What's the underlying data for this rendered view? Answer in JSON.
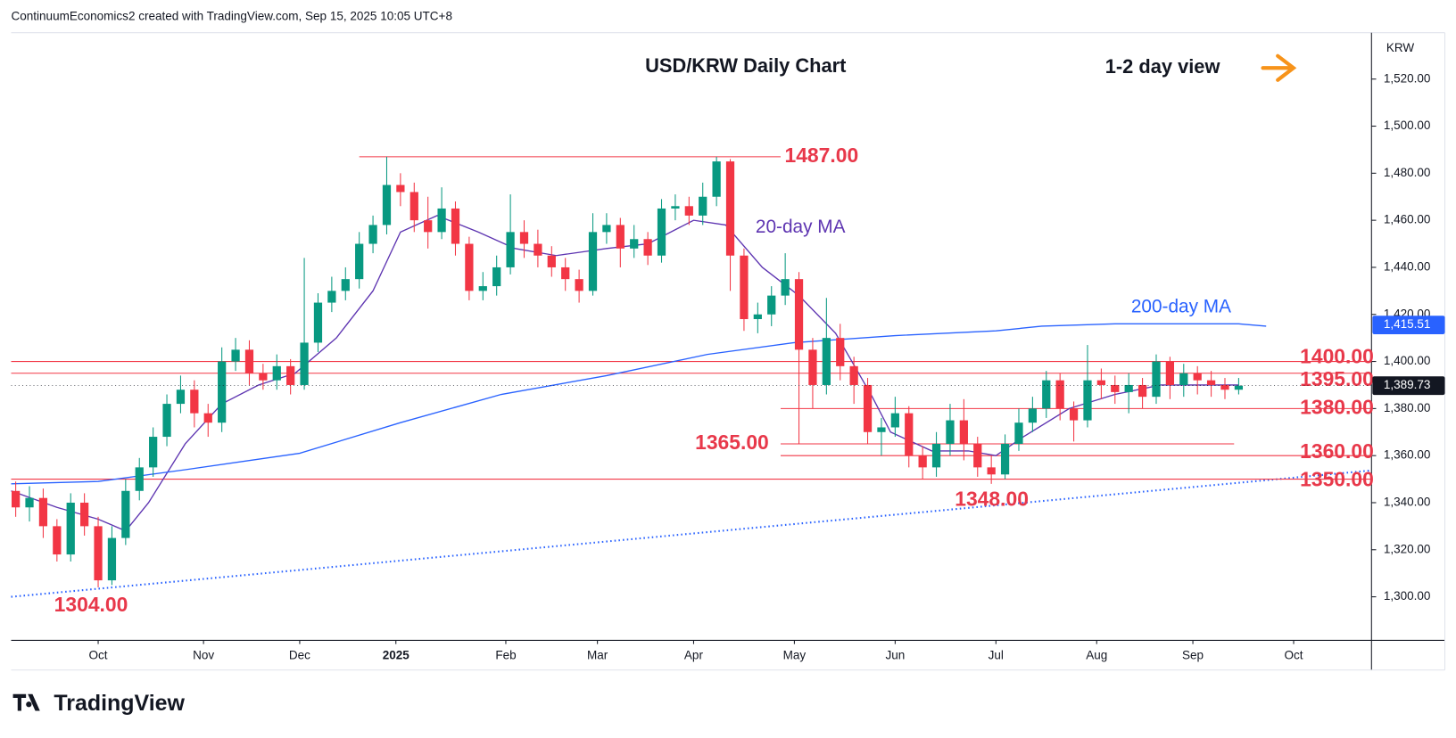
{
  "header": {
    "credit": "ContinuumEconomics2 created with TradingView.com, Sep 15, 2025 10:05 UTC+8",
    "title": "USD/KRW Daily Chart",
    "view": "1-2 day view"
  },
  "footer": {
    "logo": "TradingView"
  },
  "chart_data": {
    "type": "candlestick",
    "currency": "KRW",
    "up_color": "#089981",
    "down_color": "#f23645",
    "x": [
      -18,
      -15,
      -12,
      -9,
      -6,
      -3,
      0,
      3,
      6,
      9,
      12,
      15,
      18,
      21,
      24,
      27,
      30,
      33,
      36,
      39,
      42,
      45,
      48,
      51,
      54,
      57,
      60,
      63,
      66,
      69,
      72,
      75,
      78,
      81,
      84,
      87,
      90,
      93,
      96,
      99,
      102,
      105,
      108,
      111,
      114,
      117,
      120,
      123,
      126,
      129,
      132,
      135,
      138,
      141,
      144,
      147,
      150,
      153,
      156,
      159,
      162,
      165,
      168,
      171,
      174,
      177,
      180,
      183,
      186,
      189,
      192,
      195,
      198,
      201,
      204,
      207,
      210,
      213,
      216,
      219,
      222,
      225,
      228,
      231,
      234,
      237,
      240,
      243,
      246,
      249
    ],
    "open": [
      1345,
      1338,
      1342,
      1330,
      1318,
      1340,
      1330,
      1307,
      1325,
      1345,
      1355,
      1368,
      1382,
      1388,
      1378,
      1374,
      1400,
      1405,
      1395,
      1392,
      1398,
      1390,
      1408,
      1425,
      1430,
      1435,
      1450,
      1458,
      1475,
      1472,
      1460,
      1455,
      1465,
      1450,
      1430,
      1432,
      1440,
      1455,
      1450,
      1445,
      1440,
      1435,
      1430,
      1455,
      1458,
      1448,
      1452,
      1445,
      1465,
      1466,
      1462,
      1470,
      1485,
      1445,
      1418,
      1420,
      1428,
      1435,
      1405,
      1390,
      1410,
      1398,
      1390,
      1370,
      1372,
      1378,
      1360,
      1355,
      1365,
      1375,
      1365,
      1355,
      1352,
      1365,
      1374,
      1380,
      1392,
      1380,
      1375,
      1392,
      1390,
      1387,
      1390,
      1385,
      1400,
      1390,
      1395,
      1392,
      1390,
      1388
    ],
    "high": [
      1349,
      1347,
      1346,
      1333,
      1344,
      1344,
      1334,
      1330,
      1350,
      1359,
      1372,
      1386,
      1394,
      1392,
      1382,
      1406,
      1410,
      1409,
      1399,
      1403,
      1401,
      1444,
      1429,
      1436,
      1440,
      1455,
      1462,
      1487,
      1480,
      1476,
      1470,
      1474,
      1468,
      1453,
      1438,
      1445,
      1471,
      1460,
      1456,
      1449,
      1444,
      1439,
      1463,
      1463,
      1461,
      1458,
      1455,
      1469,
      1471,
      1470,
      1476,
      1487,
      1486,
      1448,
      1425,
      1432,
      1446,
      1438,
      1410,
      1427,
      1416,
      1402,
      1393,
      1376,
      1385,
      1381,
      1364,
      1370,
      1382,
      1384,
      1368,
      1360,
      1369,
      1380,
      1385,
      1396,
      1395,
      1383,
      1407,
      1397,
      1394,
      1395,
      1393,
      1403,
      1402,
      1399,
      1398,
      1396,
      1393,
      1393
    ],
    "low": [
      1334,
      1332,
      1325,
      1315,
      1315,
      1326,
      1304,
      1305,
      1322,
      1341,
      1351,
      1364,
      1378,
      1372,
      1368,
      1370,
      1396,
      1390,
      1388,
      1388,
      1386,
      1388,
      1404,
      1421,
      1426,
      1431,
      1446,
      1454,
      1466,
      1455,
      1448,
      1452,
      1445,
      1426,
      1426,
      1428,
      1437,
      1444,
      1440,
      1436,
      1430,
      1425,
      1428,
      1450,
      1440,
      1444,
      1441,
      1442,
      1460,
      1458,
      1458,
      1466,
      1430,
      1413,
      1412,
      1415,
      1424,
      1365,
      1380,
      1386,
      1392,
      1382,
      1365,
      1360,
      1368,
      1355,
      1350,
      1351,
      1360,
      1358,
      1351,
      1348,
      1350,
      1362,
      1370,
      1376,
      1375,
      1366,
      1372,
      1384,
      1382,
      1378,
      1380,
      1382,
      1384,
      1385,
      1386,
      1385,
      1384,
      1386
    ],
    "close": [
      1338,
      1342,
      1330,
      1318,
      1340,
      1330,
      1307,
      1325,
      1345,
      1355,
      1368,
      1382,
      1388,
      1378,
      1374,
      1400,
      1405,
      1395,
      1392,
      1398,
      1390,
      1408,
      1425,
      1430,
      1435,
      1450,
      1458,
      1475,
      1472,
      1460,
      1455,
      1465,
      1450,
      1430,
      1432,
      1440,
      1455,
      1450,
      1445,
      1440,
      1435,
      1430,
      1455,
      1458,
      1448,
      1452,
      1445,
      1465,
      1466,
      1462,
      1470,
      1485,
      1445,
      1418,
      1420,
      1428,
      1435,
      1405,
      1390,
      1410,
      1398,
      1390,
      1370,
      1372,
      1378,
      1360,
      1355,
      1365,
      1375,
      1365,
      1355,
      1352,
      1365,
      1374,
      1380,
      1392,
      1380,
      1375,
      1392,
      1390,
      1387,
      1390,
      1385,
      1400,
      1390,
      1395,
      1392,
      1390,
      1388,
      1389.73
    ],
    "last_price": {
      "value": 1389.73,
      "label": "1,389.73"
    },
    "xlim": [
      -19,
      278
    ],
    "xticks": [
      {
        "value": 0,
        "label": "Oct"
      },
      {
        "value": 23,
        "label": "Nov"
      },
      {
        "value": 44,
        "label": "Dec"
      },
      {
        "value": 65,
        "label": "2025"
      },
      {
        "value": 89,
        "label": "Feb"
      },
      {
        "value": 109,
        "label": "Mar"
      },
      {
        "value": 130,
        "label": "Apr"
      },
      {
        "value": 152,
        "label": "May"
      },
      {
        "value": 174,
        "label": "Jun"
      },
      {
        "value": 196,
        "label": "Jul"
      },
      {
        "value": 218,
        "label": "Aug"
      },
      {
        "value": 239,
        "label": "Sep"
      },
      {
        "value": 261,
        "label": "Oct"
      }
    ],
    "ylim": [
      1281.5,
      1539.7
    ],
    "yticks": [
      {
        "value": 1300,
        "label": "1,300.00"
      },
      {
        "value": 1320,
        "label": "1,320.00"
      },
      {
        "value": 1340,
        "label": "1,340.00"
      },
      {
        "value": 1360,
        "label": "1,360.00"
      },
      {
        "value": 1380,
        "label": "1,380.00"
      },
      {
        "value": 1400,
        "label": "1,400.00"
      },
      {
        "value": 1420,
        "label": "1,420.00"
      },
      {
        "value": 1440,
        "label": "1,440.00"
      },
      {
        "value": 1460,
        "label": "1,460.00"
      },
      {
        "value": 1480,
        "label": "1,480.00"
      },
      {
        "value": 1500,
        "label": "1,500.00"
      },
      {
        "value": 1520,
        "label": "1,520.00"
      }
    ],
    "grid": false,
    "series": [
      {
        "name": "20-day MA",
        "color": "#5e35b1",
        "x": [
          -19,
          -9,
          0,
          6,
          11,
          19,
          27,
          35,
          43,
          52,
          60,
          66,
          74,
          83,
          91,
          100,
          111,
          120,
          130,
          137,
          145,
          153,
          161,
          169,
          173,
          182,
          190,
          196,
          202,
          212,
          222,
          232,
          249
        ],
        "values": [
          1345,
          1338,
          1333,
          1328,
          1340,
          1365,
          1382,
          1390,
          1395,
          1410,
          1430,
          1455,
          1462,
          1455,
          1448,
          1445,
          1448,
          1450,
          1460,
          1458,
          1440,
          1428,
          1412,
          1385,
          1370,
          1362,
          1362,
          1360,
          1368,
          1380,
          1386,
          1390,
          1390
        ]
      },
      {
        "name": "200-day MA",
        "color": "#2962ff",
        "x": [
          -19,
          0,
          19,
          44,
          66,
          88,
          111,
          133,
          152,
          174,
          196,
          206,
          222,
          249,
          255
        ],
        "values": [
          1348,
          1349,
          1354,
          1361,
          1374,
          1386,
          1394,
          1403,
          1408,
          1411,
          1413,
          1415,
          1416,
          1416,
          1415
        ],
        "last": {
          "value": 1415.51,
          "label": "1,415.51"
        }
      }
    ],
    "trendline": {
      "x": [
        -19,
        278
      ],
      "values": [
        1300,
        1353.7
      ]
    },
    "levels": [
      {
        "value": 1487,
        "label": "1487.00",
        "from": 57,
        "to": 149
      },
      {
        "value": 1400,
        "label": "1400.00",
        "from": -19,
        "to": 278
      },
      {
        "value": 1395,
        "label": "1395.00",
        "from": -19,
        "to": 278
      },
      {
        "value": 1380,
        "label": "1380.00",
        "from": 149,
        "to": 278
      },
      {
        "value": 1365,
        "label": "1365.00",
        "from": 149,
        "to": 248
      },
      {
        "value": 1360,
        "label": "1360.00",
        "from": 149,
        "to": 278
      },
      {
        "value": 1350,
        "label": "1350.00",
        "from": -19,
        "to": 278
      }
    ],
    "annotations": [
      {
        "value": 1348,
        "label": "1348.00"
      },
      {
        "value": 1304,
        "label": "1304.00"
      }
    ]
  }
}
